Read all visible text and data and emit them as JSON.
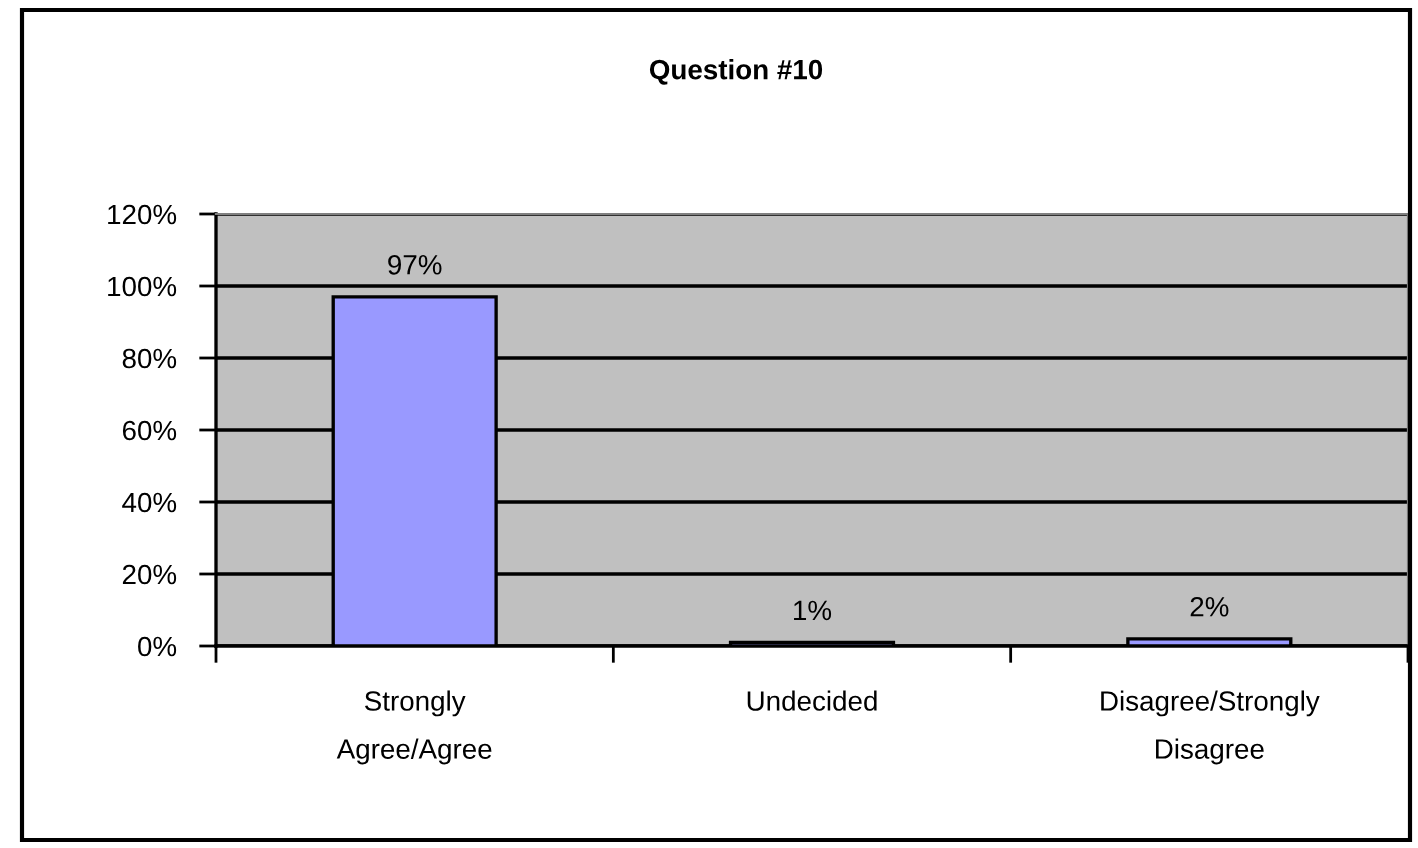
{
  "chart_data": {
    "type": "bar",
    "title": "Question #10",
    "categories": [
      "Strongly\nAgree/Agree",
      "Undecided",
      "Disagree/Strongly\nDisagree"
    ],
    "values": [
      97,
      1,
      2
    ],
    "color": "#9999ff",
    "value_labels": [
      "97%",
      "1%",
      "2%"
    ],
    "ylim": [
      0,
      120
    ],
    "yticks": [
      {
        "value": 0,
        "label": "0%"
      },
      {
        "value": 20,
        "label": "20%"
      },
      {
        "value": 40,
        "label": "40%"
      },
      {
        "value": 60,
        "label": "60%"
      },
      {
        "value": 80,
        "label": "80%"
      },
      {
        "value": 100,
        "label": "100%"
      },
      {
        "value": 120,
        "label": "120%"
      }
    ],
    "grid": "y",
    "legend": false
  }
}
